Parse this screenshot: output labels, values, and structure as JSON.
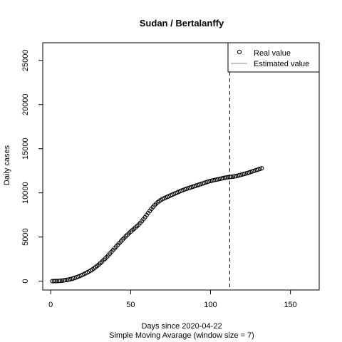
{
  "chart_data": {
    "type": "scatter",
    "title": "Sudan / Bertalanffy",
    "xlabel": "Days since 2020-04-22",
    "xlabel2": "Simple Moving Avarage (window size = 7)",
    "ylabel": "Daily cases",
    "xlim": [
      -5,
      168
    ],
    "ylim": [
      -1000,
      27000
    ],
    "xticks": [
      0,
      50,
      100,
      150
    ],
    "yticks": [
      0,
      5000,
      10000,
      15000,
      20000,
      25000
    ],
    "xtick_labels": [
      "0",
      "50",
      "100",
      "150"
    ],
    "ytick_labels": [
      "0",
      "5000",
      "10000",
      "15000",
      "20000",
      "25000"
    ],
    "vline_x": 112,
    "legend": {
      "position": "top-right",
      "entries": [
        {
          "label": "Real value",
          "style": "circle",
          "color": "#000000"
        },
        {
          "label": "Estimated value",
          "style": "line",
          "color": "#b3729b"
        }
      ]
    },
    "series": [
      {
        "name": "Real value",
        "marker": "open-circle",
        "color": "#000000",
        "x": [
          1,
          2,
          3,
          4,
          5,
          6,
          7,
          8,
          9,
          10,
          11,
          12,
          13,
          14,
          15,
          16,
          17,
          18,
          19,
          20,
          21,
          22,
          23,
          24,
          25,
          26,
          27,
          28,
          29,
          30,
          31,
          32,
          33,
          34,
          35,
          36,
          37,
          38,
          39,
          40,
          41,
          42,
          43,
          44,
          45,
          46,
          47,
          48,
          49,
          50,
          51,
          52,
          53,
          54,
          55,
          56,
          57,
          58,
          59,
          60,
          61,
          62,
          63,
          64,
          65,
          66,
          67,
          68,
          69,
          70,
          71,
          72,
          73,
          74,
          75,
          76,
          77,
          78,
          79,
          80,
          81,
          82,
          83,
          84,
          85,
          86,
          87,
          88,
          89,
          90,
          91,
          92,
          93,
          94,
          95,
          96,
          97,
          98,
          99,
          100,
          101,
          102,
          103,
          104,
          105,
          106,
          107,
          108,
          109,
          110,
          111,
          112,
          113,
          114,
          115,
          116,
          117,
          118,
          119,
          120,
          121,
          122,
          123,
          124,
          125,
          126,
          127,
          128,
          129,
          130,
          131,
          132
        ],
        "y": [
          0,
          5,
          10,
          15,
          25,
          40,
          60,
          80,
          110,
          140,
          170,
          210,
          260,
          310,
          370,
          430,
          500,
          570,
          650,
          730,
          820,
          910,
          1000,
          1100,
          1200,
          1320,
          1450,
          1580,
          1720,
          1870,
          2030,
          2200,
          2370,
          2550,
          2730,
          2920,
          3120,
          3320,
          3520,
          3720,
          3920,
          4120,
          4320,
          4520,
          4720,
          4900,
          5080,
          5260,
          5430,
          5600,
          5760,
          5920,
          6080,
          6240,
          6410,
          6600,
          6800,
          7020,
          7250,
          7480,
          7720,
          7950,
          8180,
          8400,
          8600,
          8780,
          8940,
          9080,
          9200,
          9300,
          9390,
          9470,
          9550,
          9630,
          9710,
          9790,
          9870,
          9950,
          10030,
          10110,
          10190,
          10260,
          10330,
          10400,
          10460,
          10520,
          10580,
          10640,
          10700,
          10760,
          10820,
          10880,
          10940,
          11000,
          11060,
          11120,
          11180,
          11240,
          11300,
          11350,
          11390,
          11430,
          11470,
          11510,
          11550,
          11590,
          11630,
          11670,
          11710,
          11740,
          11770,
          11800,
          11820,
          11840,
          11870,
          11900,
          11940,
          11990,
          12040,
          12090,
          12140,
          12190,
          12240,
          12300,
          12360,
          12420,
          12480,
          12540,
          12600,
          12660,
          12720,
          12780
        ]
      }
    ]
  }
}
